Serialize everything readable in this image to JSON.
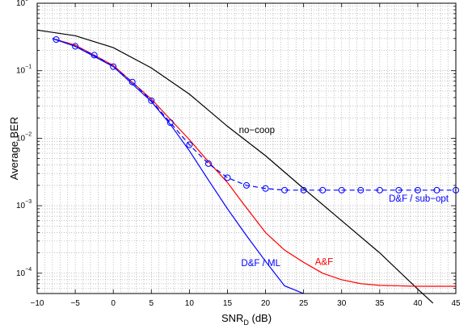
{
  "chart_data": {
    "type": "line",
    "x_axis": {
      "label_main": "SNR",
      "label_sub": "D",
      "label_suffix": " (dB)",
      "range": [
        -10,
        45
      ],
      "ticks": [
        -10,
        -5,
        0,
        5,
        10,
        15,
        20,
        25,
        30,
        35,
        40,
        45
      ],
      "tick_labels": [
        "−10",
        "−5",
        "0",
        "5",
        "10",
        "15",
        "20",
        "25",
        "30",
        "35",
        "40",
        "45"
      ],
      "minor_grid_step": 1
    },
    "y_axis": {
      "label": "Average BER",
      "scale": "log",
      "range": [
        5e-05,
        1
      ],
      "decades": [
        {
          "base": "10",
          "exp": "0",
          "value": 1
        },
        {
          "base": "10",
          "exp": "−1",
          "value": 0.1
        },
        {
          "base": "10",
          "exp": "−2",
          "value": 0.01
        },
        {
          "base": "10",
          "exp": "−3",
          "value": 0.001
        },
        {
          "base": "10",
          "exp": "−4",
          "value": 0.0001
        }
      ]
    },
    "grid": "dotted",
    "series": [
      {
        "key": "no_coop",
        "color": "#000000",
        "marker": "none",
        "dash": "solid",
        "x": [
          -10,
          -5,
          0,
          5,
          10,
          15,
          20,
          25,
          30,
          35,
          40,
          42
        ],
        "y": [
          0.4,
          0.33,
          0.22,
          0.11,
          0.045,
          0.015,
          0.0055,
          0.0018,
          0.0006,
          0.0002,
          5.8e-05,
          3.6e-05
        ]
      },
      {
        "key": "af",
        "color": "#ff0000",
        "marker": "none",
        "dash": "solid",
        "x": [
          -8,
          -5,
          0,
          5,
          10,
          12,
          15,
          17,
          20,
          22.5,
          25,
          27.5,
          30,
          32.5,
          35,
          37.5,
          40,
          42.5,
          45
        ],
        "y": [
          0.3,
          0.24,
          0.12,
          0.038,
          0.0095,
          0.0052,
          0.0022,
          0.0011,
          0.0004,
          0.00022,
          0.000145,
          0.0001,
          8e-05,
          7e-05,
          6.6e-05,
          6.5e-05,
          6.4e-05,
          6.4e-05,
          6.4e-05
        ]
      },
      {
        "key": "df_ml",
        "color": "#0000ff",
        "marker": "none",
        "dash": "solid",
        "x": [
          -8,
          -5,
          0,
          5,
          7.5,
          10,
          12.5,
          15,
          17.5,
          20,
          22.5,
          25
        ],
        "y": [
          0.3,
          0.23,
          0.115,
          0.035,
          0.016,
          0.0065,
          0.0024,
          0.0009,
          0.00036,
          0.00015,
          6.5e-05,
          5e-05
        ]
      },
      {
        "key": "df_subopt",
        "color": "#0000ff",
        "marker": "circle",
        "dash": "dashed",
        "x": [
          -7.5,
          -5,
          -2.5,
          0,
          2.5,
          5,
          7.5,
          10,
          12.5,
          15,
          17.5,
          20,
          22.5,
          25,
          27.5,
          30,
          32.5,
          35,
          37.5,
          40,
          42.5,
          45
        ],
        "y": [
          0.29,
          0.23,
          0.17,
          0.115,
          0.068,
          0.036,
          0.017,
          0.008,
          0.0042,
          0.0026,
          0.002,
          0.0018,
          0.0017,
          0.0017,
          0.0017,
          0.0017,
          0.0017,
          0.0017,
          0.0017,
          0.0017,
          0.0017,
          0.0017
        ]
      }
    ],
    "annotations": {
      "no_coop": {
        "text": "no−coop",
        "color": "#000000",
        "x": 16.5,
        "y": 0.012
      },
      "df_subopt": {
        "text": "D&F / sub−opt",
        "color": "#0000ff",
        "x": 36.2,
        "y": 0.00115
      },
      "af": {
        "text": "A&F",
        "color": "#ff0000",
        "x": 26.5,
        "y": 0.000133
      },
      "df_ml": {
        "text": "D&F / ML",
        "color": "#0000ff",
        "x": 16.8,
        "y": 0.000127
      }
    }
  }
}
